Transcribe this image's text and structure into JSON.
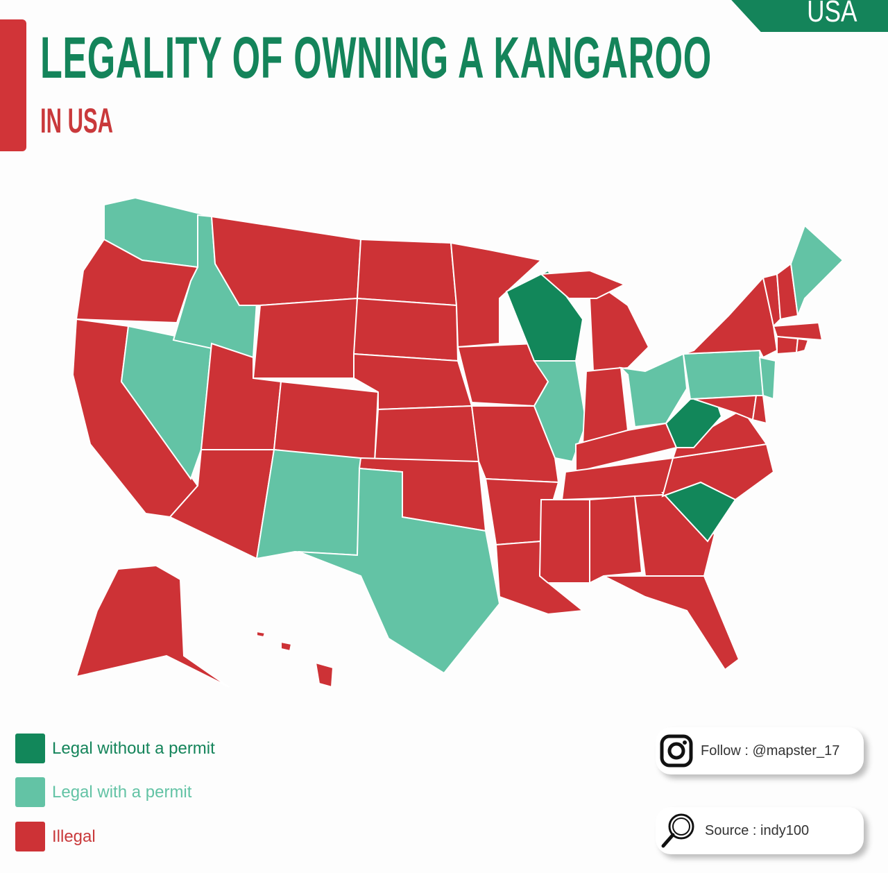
{
  "header": {
    "title": "LEGALITY OF OWNING A KANGAROO",
    "subtitle": "IN USA",
    "badge": "USA"
  },
  "colors": {
    "legal_without_permit": "#12875a",
    "legal_with_permit": "#63c3a5",
    "illegal": "#cd3236",
    "title": "#14845a",
    "accent": "#d13438"
  },
  "legend": [
    {
      "key": "legal_without_permit",
      "label": "Legal without a permit"
    },
    {
      "key": "legal_with_permit",
      "label": "Legal with a permit"
    },
    {
      "key": "illegal",
      "label": "Illegal"
    }
  ],
  "states": {
    "WA": "legal_with_permit",
    "OR": "illegal",
    "CA": "illegal",
    "NV": "legal_with_permit",
    "ID": "legal_with_permit",
    "MT": "illegal",
    "WY": "illegal",
    "UT": "illegal",
    "CO": "illegal",
    "AZ": "illegal",
    "NM": "legal_with_permit",
    "ND": "illegal",
    "SD": "illegal",
    "NE": "illegal",
    "KS": "illegal",
    "OK": "illegal",
    "TX": "legal_with_permit",
    "MN": "illegal",
    "IA": "illegal",
    "MO": "illegal",
    "AR": "illegal",
    "LA": "illegal",
    "WI": "legal_without_permit",
    "IL": "legal_with_permit",
    "MI": "illegal",
    "IN": "illegal",
    "OH": "legal_with_permit",
    "KY": "illegal",
    "TN": "illegal",
    "MS": "illegal",
    "AL": "illegal",
    "GA": "illegal",
    "FL": "illegal",
    "SC": "legal_without_permit",
    "NC": "illegal",
    "VA": "illegal",
    "WV": "legal_without_permit",
    "PA": "legal_with_permit",
    "NY": "illegal",
    "NJ": "legal_with_permit",
    "MD": "illegal",
    "DE": "illegal",
    "VT": "illegal",
    "NH": "illegal",
    "ME": "legal_with_permit",
    "MA": "illegal",
    "CT": "illegal",
    "RI": "illegal",
    "AK": "illegal",
    "HI": "illegal"
  },
  "footer": {
    "follow": "Follow : @mapster_17",
    "source": "Source : indy100"
  }
}
